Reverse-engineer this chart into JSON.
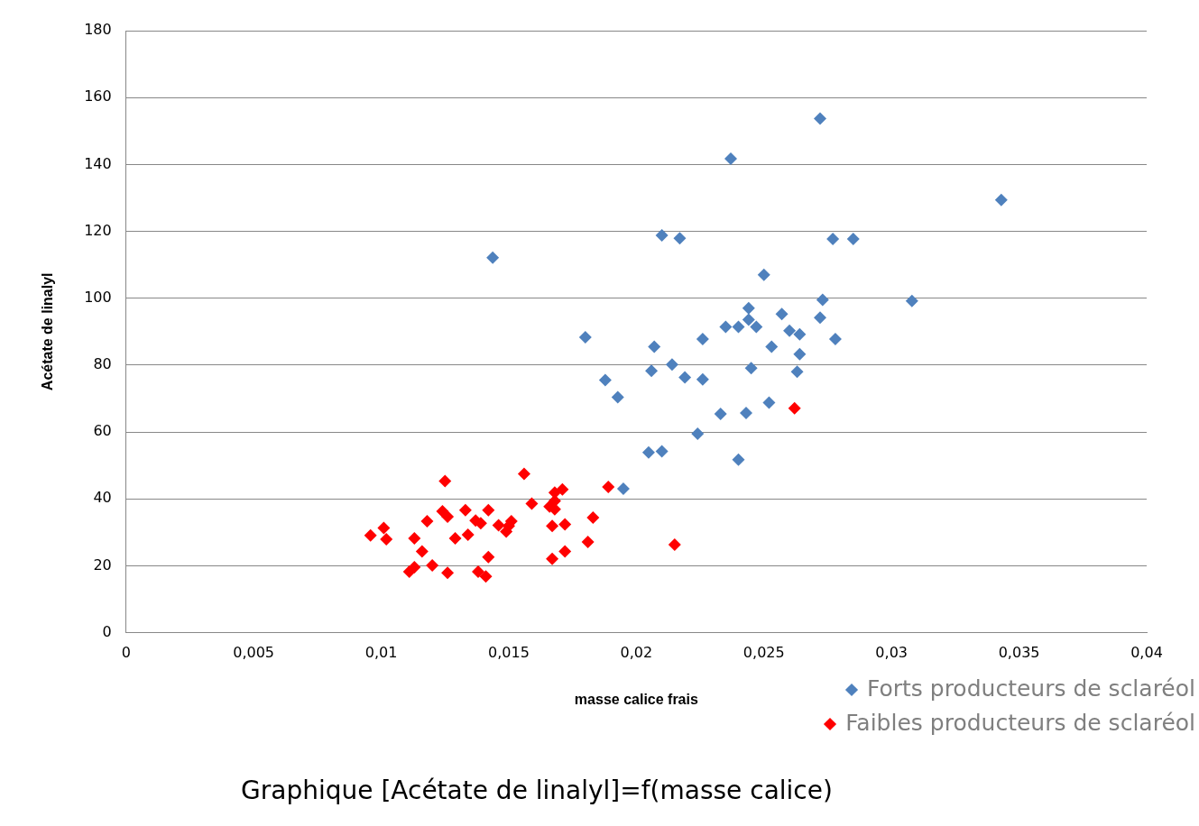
{
  "chart_data": {
    "type": "scatter",
    "title": "Graphique [Acétate de linalyl]=f(masse calice)",
    "xlabel": "masse calice frais",
    "ylabel": "Acétate de linalyl",
    "marker": "diamond",
    "grid": "y",
    "legend": "bottom right",
    "xlim": [
      0,
      0.04
    ],
    "xticks": [
      {
        "value": 0,
        "label": "0"
      },
      {
        "value": 0.005,
        "label": "0,005"
      },
      {
        "value": 0.01,
        "label": "0,01"
      },
      {
        "value": 0.015,
        "label": "0,015"
      },
      {
        "value": 0.02,
        "label": "0,02"
      },
      {
        "value": 0.025,
        "label": "0,025"
      },
      {
        "value": 0.03,
        "label": "0,03"
      },
      {
        "value": 0.035,
        "label": "0,035"
      },
      {
        "value": 0.04,
        "label": "0,04"
      }
    ],
    "ylim": [
      0,
      180
    ],
    "yticks": [
      0,
      20,
      40,
      60,
      80,
      100,
      120,
      140,
      160,
      180
    ],
    "series": [
      {
        "name": "Forts producteurs de sclaréol",
        "color": "#4f81bd",
        "x": [
          0.01437,
          0.018,
          0.01878,
          0.01927,
          0.01949,
          0.02048,
          0.021,
          0.02059,
          0.0207,
          0.021,
          0.0214,
          0.0217,
          0.0219,
          0.0224,
          0.0226,
          0.0226,
          0.0233,
          0.0235,
          0.0237,
          0.024,
          0.024,
          0.0243,
          0.0244,
          0.0244,
          0.0245,
          0.0247,
          0.025,
          0.0252,
          0.0253,
          0.0257,
          0.026,
          0.0264,
          0.0264,
          0.0263,
          0.0272,
          0.0272,
          0.0273,
          0.0277,
          0.0278,
          0.0285,
          0.0308,
          0.0343
        ],
        "values": [
          112.1,
          88.3,
          75.5,
          70.4,
          43,
          53.9,
          54.2,
          78.3,
          85.5,
          118.8,
          80.2,
          117.9,
          76.3,
          59.5,
          87.8,
          75.7,
          65.4,
          91.4,
          141.7,
          91.4,
          51.7,
          65.7,
          97,
          93.6,
          79.1,
          91.4,
          107,
          68.8,
          85.5,
          95.3,
          90.3,
          89.2,
          83.3,
          78,
          153.7,
          94.2,
          99.5,
          117.7,
          87.8,
          117.7,
          99.2,
          129.4
        ]
      },
      {
        "name": "Faibles producteurs de sclaréol",
        "color": "#ff0000",
        "x": [
          0.00958,
          0.0101,
          0.0102,
          0.0111,
          0.0113,
          0.0113,
          0.0116,
          0.0118,
          0.012,
          0.0124,
          0.0125,
          0.0126,
          0.0126,
          0.0129,
          0.0133,
          0.0134,
          0.0137,
          0.0139,
          0.0138,
          0.0141,
          0.0142,
          0.0142,
          0.0146,
          0.0149,
          0.015,
          0.0151,
          0.0156,
          0.0159,
          0.0166,
          0.0167,
          0.0167,
          0.0168,
          0.0168,
          0.0168,
          0.0171,
          0.0172,
          0.0172,
          0.0181,
          0.0183,
          0.0189,
          0.0215,
          0.0262
        ],
        "values": [
          29.1,
          31.3,
          27.9,
          18.2,
          19.6,
          28.2,
          24.3,
          33.3,
          20.1,
          36.3,
          45.3,
          34.7,
          17.9,
          28.2,
          36.6,
          29.3,
          33.5,
          32.7,
          18.2,
          16.8,
          22.6,
          36.6,
          32.1,
          30.2,
          31.9,
          33.3,
          47.5,
          38.6,
          37.7,
          31.9,
          22.1,
          41.9,
          36.9,
          39.4,
          42.8,
          32.4,
          24.3,
          27.1,
          34.4,
          43.6,
          26.3,
          67.1
        ]
      }
    ]
  }
}
